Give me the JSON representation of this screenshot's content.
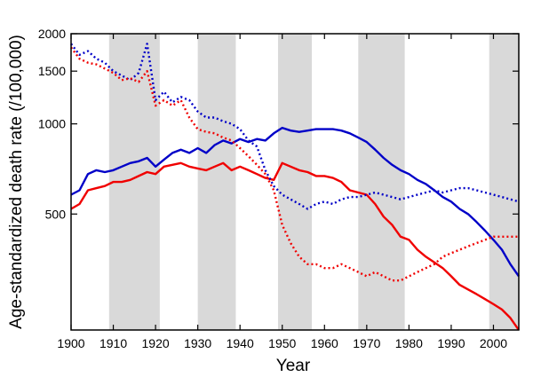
{
  "chart_data": {
    "type": "line",
    "x_label": "Year",
    "y_label": "Age-standardized death rate (/100,000)",
    "log_y": true,
    "xlim": [
      1900,
      2006
    ],
    "ylim": [
      205,
      2000
    ],
    "xticks": [
      1900,
      1910,
      1920,
      1930,
      1940,
      1950,
      1960,
      1970,
      1980,
      1990,
      2000
    ],
    "yticks": [
      500,
      1000,
      1500,
      2000
    ],
    "shaded_periods": [
      [
        1909,
        1921
      ],
      [
        1930,
        1939
      ],
      [
        1949,
        1957
      ],
      [
        1968,
        1979
      ],
      [
        1999,
        2006
      ]
    ],
    "shade_color": "#d9d9d9",
    "x": [
      1900,
      1902,
      1904,
      1906,
      1908,
      1910,
      1912,
      1914,
      1916,
      1918,
      1920,
      1922,
      1924,
      1926,
      1928,
      1930,
      1932,
      1934,
      1936,
      1938,
      1940,
      1942,
      1944,
      1946,
      1948,
      1950,
      1952,
      1954,
      1956,
      1958,
      1960,
      1962,
      1964,
      1966,
      1968,
      1970,
      1972,
      1974,
      1976,
      1978,
      1980,
      1982,
      1984,
      1986,
      1988,
      1990,
      1992,
      1994,
      1996,
      1998,
      2000,
      2002,
      2004,
      2006
    ],
    "series": [
      {
        "color": "#0000c8",
        "dash": "solid",
        "values": [
          580,
          600,
          680,
          700,
          690,
          700,
          720,
          740,
          750,
          770,
          720,
          760,
          800,
          820,
          800,
          830,
          800,
          850,
          880,
          860,
          890,
          870,
          890,
          880,
          930,
          970,
          950,
          940,
          950,
          960,
          960,
          960,
          950,
          930,
          900,
          870,
          820,
          770,
          730,
          700,
          680,
          650,
          630,
          600,
          570,
          550,
          520,
          500,
          470,
          440,
          410,
          380,
          340,
          310
        ]
      },
      {
        "color": "#f00000",
        "dash": "solid",
        "values": [
          520,
          540,
          600,
          610,
          620,
          640,
          640,
          650,
          670,
          690,
          680,
          720,
          730,
          740,
          720,
          710,
          700,
          720,
          740,
          700,
          720,
          700,
          680,
          660,
          650,
          740,
          720,
          700,
          690,
          670,
          670,
          660,
          640,
          600,
          590,
          580,
          540,
          490,
          460,
          420,
          410,
          380,
          360,
          345,
          330,
          310,
          290,
          280,
          270,
          260,
          250,
          240,
          225,
          205
        ]
      },
      {
        "color": "#0000c8",
        "dash": "dotted",
        "values": [
          1850,
          1700,
          1750,
          1650,
          1600,
          1500,
          1450,
          1400,
          1480,
          1850,
          1200,
          1280,
          1180,
          1230,
          1200,
          1100,
          1050,
          1050,
          1020,
          1000,
          960,
          880,
          840,
          700,
          620,
          580,
          560,
          540,
          520,
          540,
          550,
          540,
          560,
          570,
          570,
          580,
          590,
          580,
          570,
          560,
          570,
          580,
          590,
          600,
          590,
          600,
          610,
          610,
          600,
          590,
          580,
          570,
          560,
          550
        ]
      },
      {
        "color": "#f00000",
        "dash": "dotted",
        "values": [
          1800,
          1650,
          1600,
          1580,
          1530,
          1480,
          1400,
          1420,
          1380,
          1500,
          1150,
          1200,
          1150,
          1200,
          1050,
          960,
          940,
          930,
          900,
          880,
          830,
          780,
          730,
          680,
          600,
          460,
          400,
          360,
          340,
          340,
          330,
          330,
          340,
          330,
          320,
          310,
          320,
          310,
          300,
          300,
          310,
          320,
          330,
          340,
          360,
          370,
          380,
          390,
          400,
          410,
          420,
          420,
          420,
          420
        ]
      }
    ]
  }
}
